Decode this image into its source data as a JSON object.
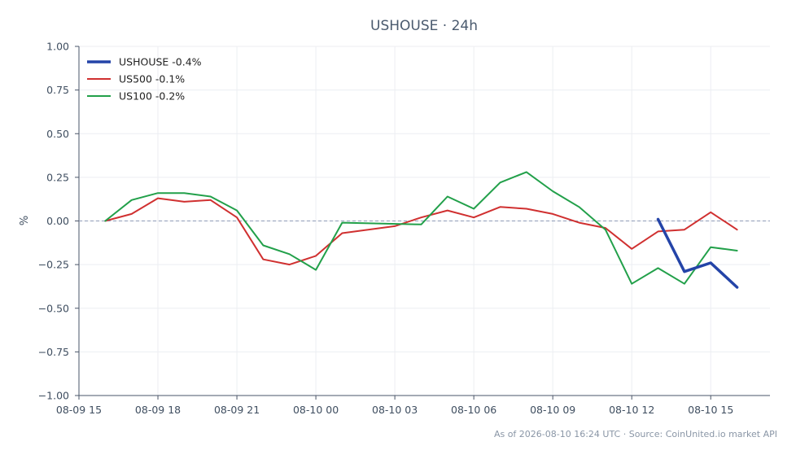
{
  "chart_data": {
    "type": "line",
    "title": "USHOUSE · 24h",
    "xlabel": "",
    "ylabel": "%",
    "ylim": [
      -1.0,
      1.0
    ],
    "xlim": [
      "2026-08-09 15:00",
      "2026-08-10 17:15"
    ],
    "y_ticks": [
      "1.00",
      "0.75",
      "0.50",
      "0.25",
      "0.00",
      "−0.25",
      "−0.50",
      "−0.75",
      "−1.00"
    ],
    "x_ticks": [
      "08-09 15",
      "08-09 18",
      "08-09 21",
      "08-10 00",
      "08-10 03",
      "08-10 06",
      "08-10 09",
      "08-10 12",
      "08-10 15"
    ],
    "grid": true,
    "reference_line": 0.0,
    "legend_position": "top-left",
    "series": [
      {
        "name": "USHOUSE -0.4%",
        "color": "#2444a8",
        "x": [
          "2026-08-10 13:00",
          "2026-08-10 14:00",
          "2026-08-10 15:00",
          "2026-08-10 16:00"
        ],
        "y": [
          0.01,
          -0.29,
          -0.24,
          -0.38
        ]
      },
      {
        "name": "US500 -0.1%",
        "color": "#d03030",
        "x": [
          "2026-08-09 16:00",
          "2026-08-09 17:00",
          "2026-08-09 18:00",
          "2026-08-09 19:00",
          "2026-08-09 20:00",
          "2026-08-09 21:00",
          "2026-08-09 22:00",
          "2026-08-09 23:00",
          "2026-08-10 00:00",
          "2026-08-10 01:00",
          "2026-08-10 03:00",
          "2026-08-10 04:00",
          "2026-08-10 05:00",
          "2026-08-10 06:00",
          "2026-08-10 07:00",
          "2026-08-10 08:00",
          "2026-08-10 09:00",
          "2026-08-10 10:00",
          "2026-08-10 11:00",
          "2026-08-10 12:00",
          "2026-08-10 13:00",
          "2026-08-10 14:00",
          "2026-08-10 15:00",
          "2026-08-10 16:00"
        ],
        "y": [
          0.0,
          0.04,
          0.13,
          0.11,
          0.12,
          0.02,
          -0.22,
          -0.25,
          -0.2,
          -0.07,
          -0.03,
          0.02,
          0.06,
          0.02,
          0.08,
          0.07,
          0.04,
          -0.01,
          -0.04,
          -0.16,
          -0.06,
          -0.05,
          0.05,
          -0.05
        ]
      },
      {
        "name": "US100 -0.2%",
        "color": "#22a04a",
        "x": [
          "2026-08-09 16:00",
          "2026-08-09 17:00",
          "2026-08-09 18:00",
          "2026-08-09 19:00",
          "2026-08-09 20:00",
          "2026-08-09 21:00",
          "2026-08-09 22:00",
          "2026-08-09 23:00",
          "2026-08-10 00:00",
          "2026-08-10 01:00",
          "2026-08-10 04:00",
          "2026-08-10 05:00",
          "2026-08-10 06:00",
          "2026-08-10 07:00",
          "2026-08-10 08:00",
          "2026-08-10 09:00",
          "2026-08-10 10:00",
          "2026-08-10 11:00",
          "2026-08-10 12:00",
          "2026-08-10 13:00",
          "2026-08-10 14:00",
          "2026-08-10 15:00",
          "2026-08-10 16:00"
        ],
        "y": [
          0.0,
          0.12,
          0.16,
          0.16,
          0.14,
          0.06,
          -0.14,
          -0.19,
          -0.28,
          -0.01,
          -0.02,
          0.14,
          0.07,
          0.22,
          0.28,
          0.17,
          0.08,
          -0.05,
          -0.36,
          -0.27,
          -0.36,
          -0.15,
          -0.17
        ]
      }
    ]
  },
  "footer": "As of 2026-08-10 16:24 UTC · Source: CoinUnited.io market API"
}
